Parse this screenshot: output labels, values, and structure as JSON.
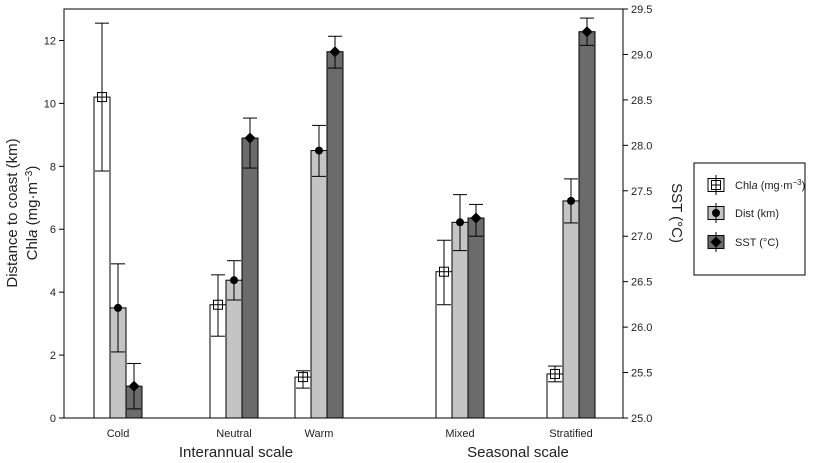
{
  "chart_data": {
    "type": "bar",
    "categories": [
      "Cold",
      "Neutral",
      "Warm",
      "Mixed",
      "Stratified"
    ],
    "groups": [
      {
        "label": "Interannual scale",
        "categories": [
          "Cold",
          "Neutral",
          "Warm"
        ]
      },
      {
        "label": "Seasonal scale",
        "categories": [
          "Mixed",
          "Stratified"
        ]
      }
    ],
    "series": [
      {
        "name": "Chla",
        "legend_main": "Chl",
        "legend_italic": "a",
        "legend_unit": " (mg·m",
        "legend_sup": "−3",
        "legend_close": ")",
        "axis": "left",
        "color": "#ffffff",
        "marker": "square-cross",
        "values": [
          10.2,
          3.6,
          1.3,
          4.65,
          1.4
        ],
        "err_low": [
          7.85,
          2.6,
          0.95,
          3.6,
          1.15
        ],
        "err_high": [
          12.55,
          4.55,
          1.5,
          5.65,
          1.65
        ]
      },
      {
        "name": "Dist (km)",
        "axis": "left",
        "color": "#c4c4c4",
        "marker": "circle",
        "values": [
          3.5,
          4.38,
          8.5,
          6.22,
          6.9
        ],
        "err_low": [
          2.1,
          3.75,
          7.68,
          5.32,
          6.2
        ],
        "err_high": [
          4.9,
          5.0,
          9.3,
          7.1,
          7.6
        ]
      },
      {
        "name": "SST (°C)",
        "axis": "right",
        "color": "#6b6b6b",
        "marker": "diamond",
        "values": [
          25.35,
          28.08,
          29.03,
          27.2,
          29.25
        ],
        "err_low": [
          25.1,
          27.75,
          28.85,
          27.0,
          29.1
        ],
        "err_high": [
          25.6,
          28.3,
          29.2,
          27.35,
          29.4
        ]
      }
    ],
    "y_left": {
      "label_line1": "Distance to coast (km)",
      "label_line2_main": "Chl",
      "label_line2_italic": "a",
      "label_line2_unit": " (mg·m",
      "label_line2_sup": "−3",
      "label_line2_close": ")",
      "range": [
        0,
        13
      ],
      "ticks": [
        0,
        2,
        4,
        6,
        8,
        10,
        12
      ]
    },
    "y_right": {
      "label": "SST (°C)",
      "range": [
        25.0,
        29.5
      ],
      "ticks": [
        25.0,
        25.5,
        26.0,
        26.5,
        27.0,
        27.5,
        28.0,
        28.5,
        29.0,
        29.5
      ],
      "tick_labels": [
        "25.0",
        "25.5",
        "26.0",
        "26.5",
        "27.0",
        "27.5",
        "28.0",
        "28.5",
        "29.0",
        "29.5"
      ]
    },
    "legend_position": "right"
  }
}
